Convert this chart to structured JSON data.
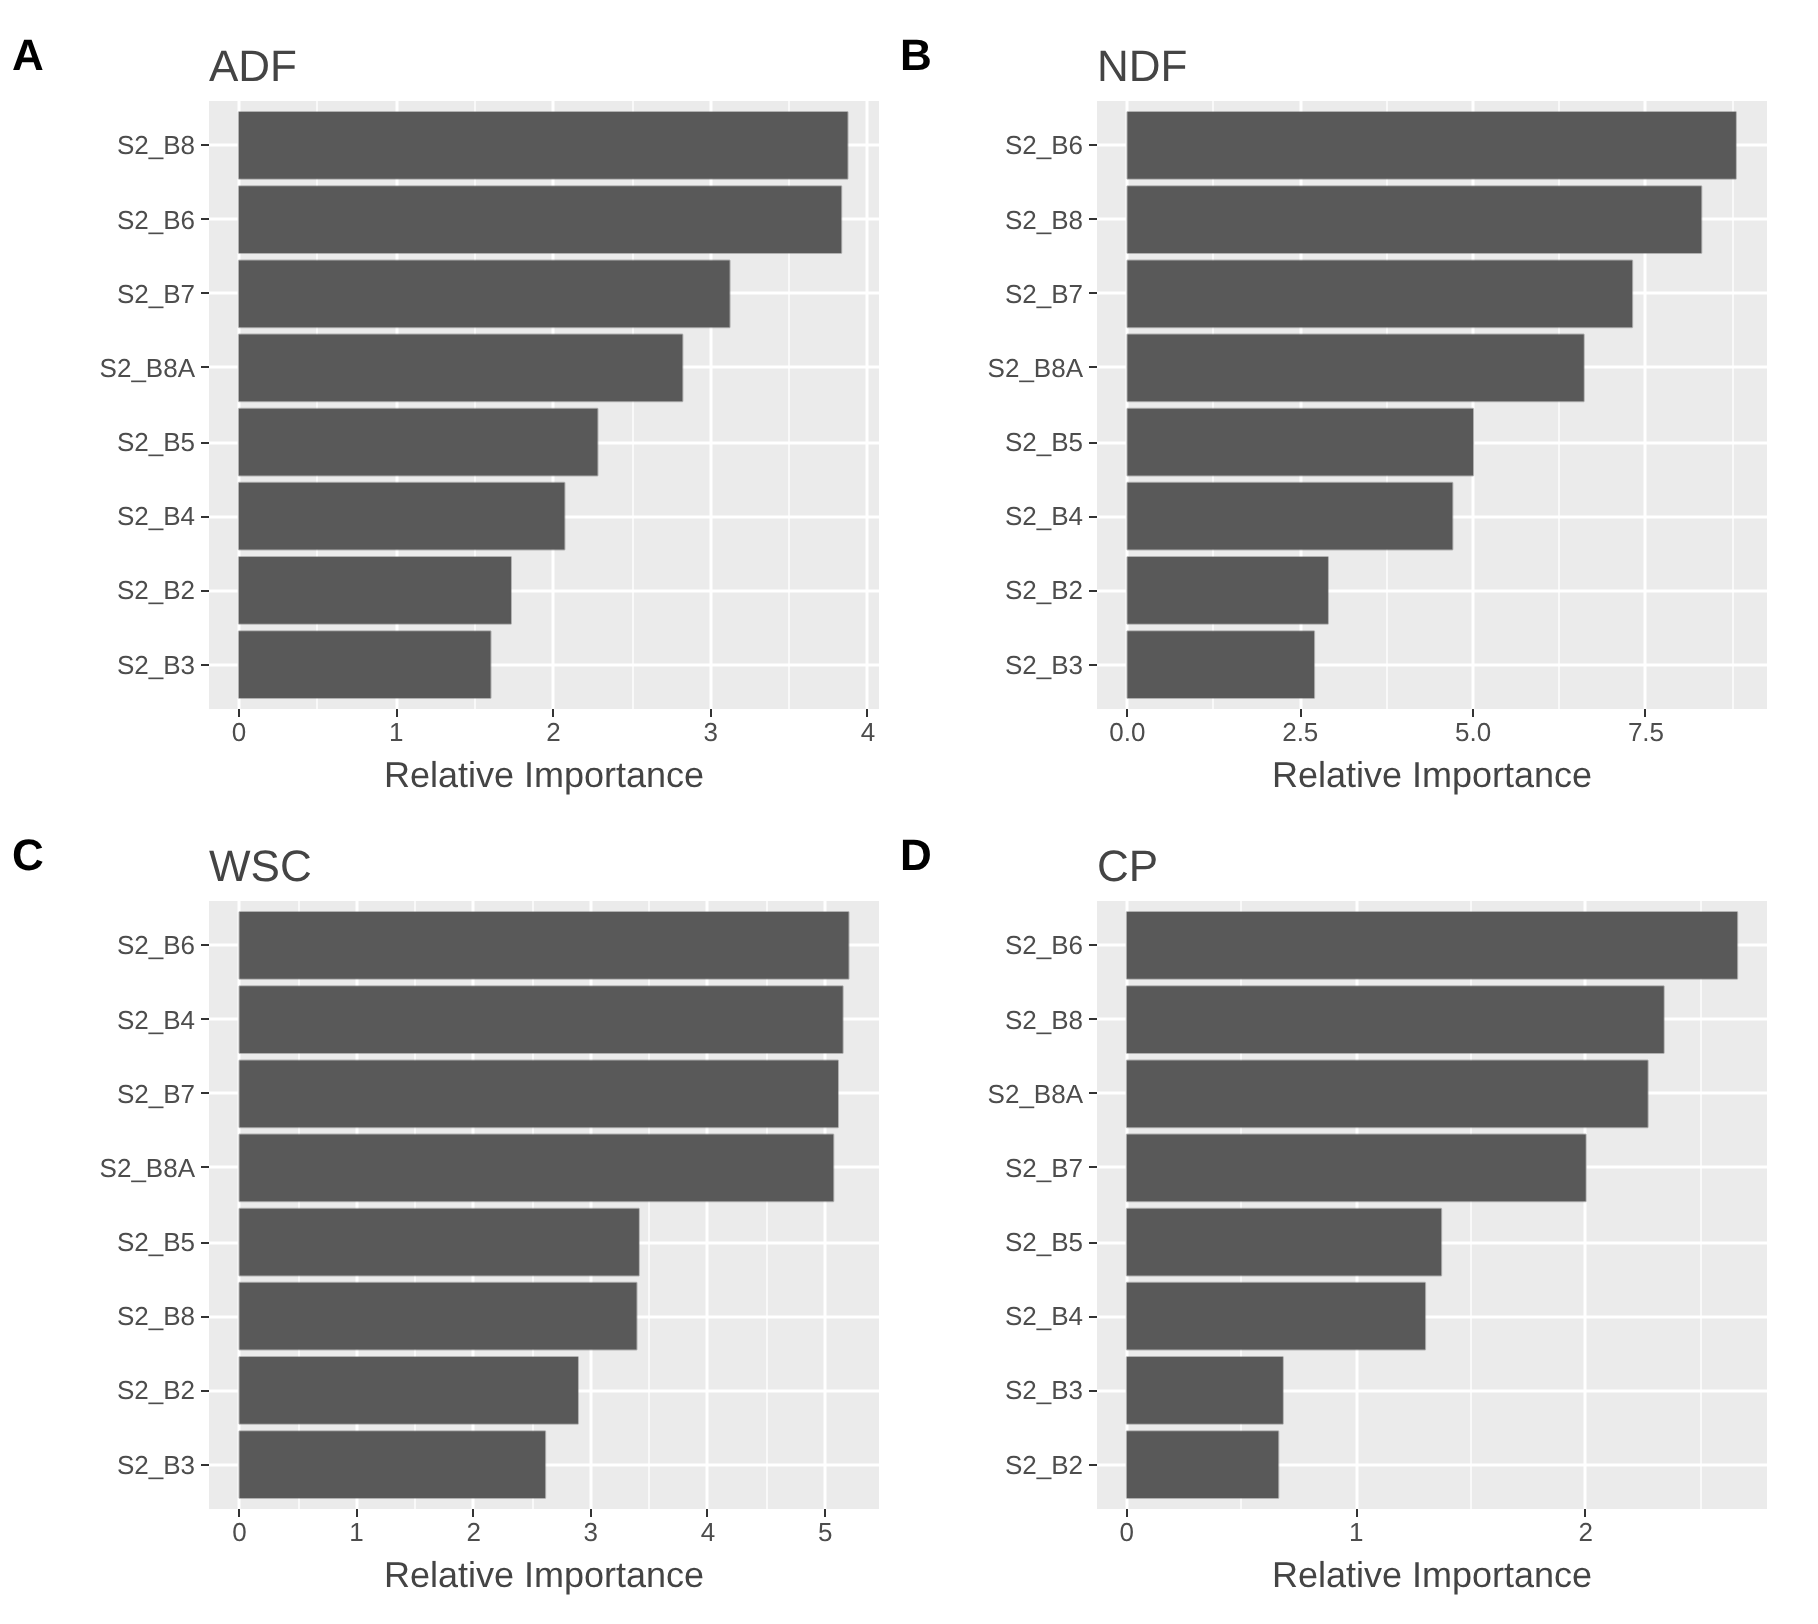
{
  "chart_data": [
    {
      "type": "bar",
      "orientation": "horizontal",
      "title": "ADF",
      "annotations": [
        "A"
      ],
      "xlabel": "Relative Importance",
      "categories": [
        "S2_B8",
        "S2_B6",
        "S2_B7",
        "S2_B8A",
        "S2_B5",
        "S2_B4",
        "S2_B2",
        "S2_B3"
      ],
      "values": [
        3.87,
        3.83,
        3.12,
        2.82,
        2.28,
        2.07,
        1.73,
        1.6
      ],
      "color": "#595959",
      "xlim": [
        -0.19,
        4.07
      ],
      "xticks": [
        0,
        {
          "value": 0.5,
          "label": null
        },
        1,
        {
          "value": 1.5,
          "label": null
        },
        2,
        {
          "value": 2.5,
          "label": null
        },
        3,
        {
          "value": 3.5,
          "label": null
        },
        4
      ],
      "grid": true
    },
    {
      "type": "bar",
      "orientation": "horizontal",
      "title": "NDF",
      "annotations": [
        "B"
      ],
      "xlabel": "Relative Importance",
      "categories": [
        "S2_B6",
        "S2_B8",
        "S2_B7",
        "S2_B8A",
        "S2_B5",
        "S2_B4",
        "S2_B2",
        "S2_B3"
      ],
      "values": [
        8.8,
        8.3,
        7.3,
        6.6,
        5.0,
        4.7,
        2.9,
        2.7
      ],
      "color": "#595959",
      "xlim": [
        -0.44,
        9.25
      ],
      "xticks": [
        {
          "value": 0,
          "label": "0.0"
        },
        {
          "value": 1.25,
          "label": null
        },
        2.5,
        {
          "value": 3.75,
          "label": null
        },
        {
          "value": 5,
          "label": "5.0"
        },
        {
          "value": 6.25,
          "label": null
        },
        7.5,
        {
          "value": 8.75,
          "label": null
        }
      ],
      "grid": true
    },
    {
      "type": "bar",
      "orientation": "horizontal",
      "title": "WSC",
      "annotations": [
        "C"
      ],
      "xlabel": "Relative Importance",
      "categories": [
        "S2_B6",
        "S2_B4",
        "S2_B7",
        "S2_B8A",
        "S2_B5",
        "S2_B8",
        "S2_B2",
        "S2_B3"
      ],
      "values": [
        5.2,
        5.15,
        5.11,
        5.07,
        3.41,
        3.39,
        2.89,
        2.61
      ],
      "color": "#595959",
      "xlim": [
        -0.26,
        5.46
      ],
      "xticks": [
        0,
        {
          "value": 0.5,
          "label": null
        },
        1,
        {
          "value": 1.5,
          "label": null
        },
        2,
        {
          "value": 2.5,
          "label": null
        },
        3,
        {
          "value": 3.5,
          "label": null
        },
        4,
        {
          "value": 4.5,
          "label": null
        },
        5
      ],
      "grid": true
    },
    {
      "type": "bar",
      "orientation": "horizontal",
      "title": "CP",
      "annotations": [
        "D"
      ],
      "xlabel": "Relative Importance",
      "categories": [
        "S2_B6",
        "S2_B8",
        "S2_B8A",
        "S2_B7",
        "S2_B5",
        "S2_B4",
        "S2_B3",
        "S2_B2"
      ],
      "values": [
        2.66,
        2.34,
        2.27,
        2.0,
        1.37,
        1.3,
        0.68,
        0.66
      ],
      "color": "#595959",
      "xlim": [
        -0.13,
        2.79
      ],
      "xticks": [
        0,
        {
          "value": 0.5,
          "label": null
        },
        1,
        {
          "value": 1.5,
          "label": null
        },
        2,
        {
          "value": 2.5,
          "label": null
        }
      ],
      "grid": true
    }
  ]
}
